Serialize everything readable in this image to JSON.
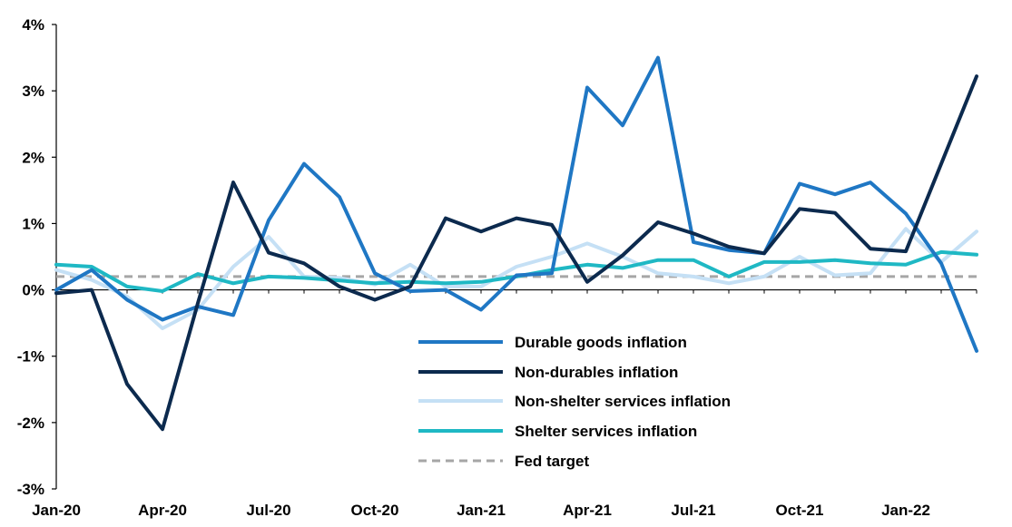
{
  "chart_data": {
    "type": "line",
    "title": "",
    "xlabel": "",
    "ylabel": "",
    "ylim": [
      -3,
      4
    ],
    "y_ticks": [
      {
        "value": 4,
        "label": "4%"
      },
      {
        "value": 3,
        "label": "3%"
      },
      {
        "value": 2,
        "label": "2%"
      },
      {
        "value": 1,
        "label": "1%"
      },
      {
        "value": 0,
        "label": "0%"
      },
      {
        "value": -1,
        "label": "-1%"
      },
      {
        "value": -2,
        "label": "-2%"
      },
      {
        "value": -3,
        "label": "-3%"
      }
    ],
    "x": [
      "Jan-20",
      "Feb-20",
      "Mar-20",
      "Apr-20",
      "May-20",
      "Jun-20",
      "Jul-20",
      "Aug-20",
      "Sep-20",
      "Oct-20",
      "Nov-20",
      "Dec-20",
      "Jan-21",
      "Feb-21",
      "Mar-21",
      "Apr-21",
      "May-21",
      "Jun-21",
      "Jul-21",
      "Aug-21",
      "Sep-21",
      "Oct-21",
      "Nov-21",
      "Dec-21",
      "Jan-22",
      "Feb-22",
      "Mar-22"
    ],
    "x_tick_labels": [
      {
        "index": 0,
        "label": "Jan-20"
      },
      {
        "index": 3,
        "label": "Apr-20"
      },
      {
        "index": 6,
        "label": "Jul-20"
      },
      {
        "index": 9,
        "label": "Oct-20"
      },
      {
        "index": 12,
        "label": "Jan-21"
      },
      {
        "index": 15,
        "label": "Apr-21"
      },
      {
        "index": 18,
        "label": "Jul-21"
      },
      {
        "index": 21,
        "label": "Oct-21"
      },
      {
        "index": 24,
        "label": "Jan-22"
      }
    ],
    "grid": false,
    "legend_position": "bottom-center",
    "series": [
      {
        "name": "Durable goods inflation",
        "color": "#1F77C4",
        "dashed": false,
        "values": [
          0.0,
          0.3,
          -0.15,
          -0.45,
          -0.25,
          -0.38,
          1.05,
          1.9,
          1.4,
          0.25,
          -0.02,
          0.0,
          -0.3,
          0.22,
          0.25,
          3.05,
          2.48,
          3.5,
          0.72,
          0.6,
          0.55,
          1.6,
          1.44,
          1.62,
          1.15,
          0.4,
          -0.92
        ]
      },
      {
        "name": "Non-durables inflation",
        "color": "#0C2A4E",
        "dashed": false,
        "values": [
          -0.05,
          0.0,
          -1.42,
          -2.1,
          -0.2,
          1.62,
          0.56,
          0.4,
          0.05,
          -0.15,
          0.05,
          1.08,
          0.88,
          1.08,
          0.98,
          0.12,
          0.52,
          1.02,
          0.85,
          0.65,
          0.55,
          1.22,
          1.16,
          0.62,
          0.58,
          1.9,
          3.22
        ]
      },
      {
        "name": "Non-shelter services inflation",
        "color": "#C5E0F5",
        "dashed": false,
        "values": [
          0.3,
          0.15,
          -0.1,
          -0.58,
          -0.3,
          0.35,
          0.8,
          0.2,
          0.18,
          0.08,
          0.38,
          0.05,
          0.05,
          0.35,
          0.5,
          0.7,
          0.5,
          0.25,
          0.2,
          0.1,
          0.2,
          0.5,
          0.22,
          0.25,
          0.92,
          0.42,
          0.88
        ]
      },
      {
        "name": "Shelter services inflation",
        "color": "#1FB8C4",
        "dashed": false,
        "values": [
          0.38,
          0.35,
          0.05,
          -0.02,
          0.24,
          0.1,
          0.2,
          0.18,
          0.14,
          0.1,
          0.12,
          0.1,
          0.12,
          0.2,
          0.3,
          0.38,
          0.33,
          0.45,
          0.45,
          0.2,
          0.42,
          0.42,
          0.45,
          0.4,
          0.38,
          0.57,
          0.53
        ]
      },
      {
        "name": "Fed target",
        "color": "#A6A6A6",
        "dashed": true,
        "values": [
          0.2,
          0.2,
          0.2,
          0.2,
          0.2,
          0.2,
          0.2,
          0.2,
          0.2,
          0.2,
          0.2,
          0.2,
          0.2,
          0.2,
          0.2,
          0.2,
          0.2,
          0.2,
          0.2,
          0.2,
          0.2,
          0.2,
          0.2,
          0.2,
          0.2,
          0.2,
          0.2
        ]
      }
    ]
  }
}
